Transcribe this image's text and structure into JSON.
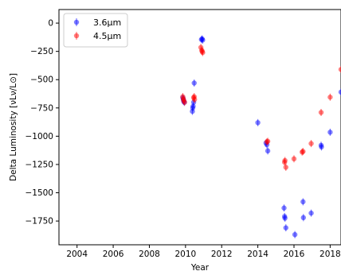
{
  "chart_data": {
    "type": "scatter",
    "title": "",
    "xlabel": "Year",
    "ylabel": "Delta Luminosity [νLν/L⊙]",
    "xlim": [
      2003.0,
      2018.6
    ],
    "ylim": [
      -1960,
      120
    ],
    "xticks": [
      2004,
      2006,
      2008,
      2010,
      2012,
      2014,
      2016,
      2018
    ],
    "yticks": [
      0,
      -250,
      -500,
      -750,
      -1000,
      -1250,
      -1500,
      -1750
    ],
    "ytick_labels": [
      "0",
      "−250",
      "−500",
      "−750",
      "−1000",
      "−1250",
      "−1500",
      "−1750"
    ],
    "grid": false,
    "legend_position": "top-left",
    "series": [
      {
        "name": "3.6μm",
        "color": "#0000ff",
        "points": [
          [
            2009.85,
            -660
          ],
          [
            2009.88,
            -675
          ],
          [
            2009.9,
            -690
          ],
          [
            2009.93,
            -700
          ],
          [
            2010.38,
            -780
          ],
          [
            2010.4,
            -750
          ],
          [
            2010.42,
            -735
          ],
          [
            2010.45,
            -700
          ],
          [
            2010.48,
            -530
          ],
          [
            2010.88,
            -145
          ],
          [
            2010.92,
            -140
          ],
          [
            2010.95,
            -150
          ],
          [
            2014.0,
            -880
          ],
          [
            2014.45,
            -1060
          ],
          [
            2014.5,
            -1075
          ],
          [
            2014.55,
            -1130
          ],
          [
            2015.45,
            -1635
          ],
          [
            2015.48,
            -1710
          ],
          [
            2015.5,
            -1725
          ],
          [
            2015.55,
            -1810
          ],
          [
            2016.05,
            -1870
          ],
          [
            2016.5,
            -1580
          ],
          [
            2016.52,
            -1720
          ],
          [
            2016.95,
            -1680
          ],
          [
            2017.5,
            -1080
          ],
          [
            2017.52,
            -1095
          ],
          [
            2018.0,
            -965
          ],
          [
            2018.6,
            -610
          ]
        ]
      },
      {
        "name": "4.5μm",
        "color": "#ff0000",
        "points": [
          [
            2009.85,
            -650
          ],
          [
            2009.88,
            -670
          ],
          [
            2009.9,
            -685
          ],
          [
            2009.95,
            -700
          ],
          [
            2010.45,
            -660
          ],
          [
            2010.48,
            -650
          ],
          [
            2010.5,
            -675
          ],
          [
            2010.85,
            -215
          ],
          [
            2010.9,
            -240
          ],
          [
            2010.92,
            -250
          ],
          [
            2010.95,
            -260
          ],
          [
            2014.5,
            -1050
          ],
          [
            2014.55,
            -1045
          ],
          [
            2015.48,
            -1230
          ],
          [
            2015.5,
            -1215
          ],
          [
            2015.55,
            -1275
          ],
          [
            2016.0,
            -1200
          ],
          [
            2016.45,
            -1140
          ],
          [
            2016.5,
            -1135
          ],
          [
            2016.95,
            -1065
          ],
          [
            2017.5,
            -790
          ],
          [
            2018.0,
            -655
          ],
          [
            2018.6,
            -410
          ]
        ]
      }
    ]
  }
}
